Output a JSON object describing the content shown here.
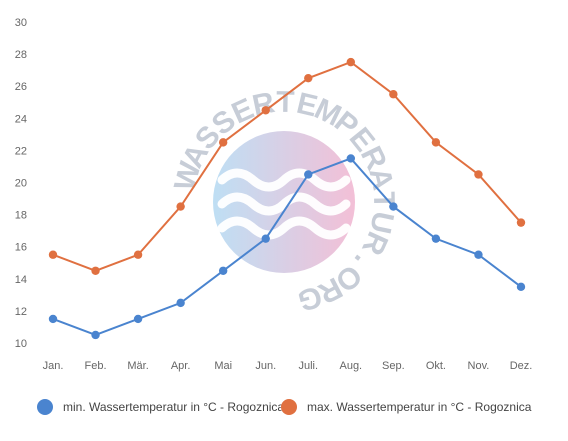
{
  "chart_data": {
    "type": "line",
    "categories": [
      "Jan.",
      "Feb.",
      "Mär.",
      "Apr.",
      "Mai",
      "Jun.",
      "Juli.",
      "Aug.",
      "Sep.",
      "Okt.",
      "Nov.",
      "Dez."
    ],
    "series": [
      {
        "name": "min. Wassertemperatur in °C - Rogoznica",
        "color": "#4a84cf",
        "values": [
          11.5,
          10.5,
          11.5,
          12.5,
          14.5,
          16.5,
          20.5,
          21.5,
          18.5,
          16.5,
          15.5,
          13.5
        ]
      },
      {
        "name": "max. Wassertemperatur in °C - Rogoznica",
        "color": "#e07040",
        "values": [
          15.5,
          14.5,
          15.5,
          18.5,
          22.5,
          24.5,
          26.5,
          27.5,
          25.5,
          22.5,
          20.5,
          17.5
        ]
      }
    ],
    "yticks": [
      10,
      12,
      14,
      16,
      18,
      20,
      22,
      24,
      26,
      28,
      30
    ],
    "ylim": [
      10,
      30
    ],
    "title": "",
    "xlabel": "",
    "ylabel": "",
    "grid": false,
    "legend_position": "bottom"
  },
  "watermark": {
    "text": "WASSERTEMPERATUR.ORG",
    "gradient_start": "#a9d4f0",
    "gradient_end": "#efaac9"
  }
}
